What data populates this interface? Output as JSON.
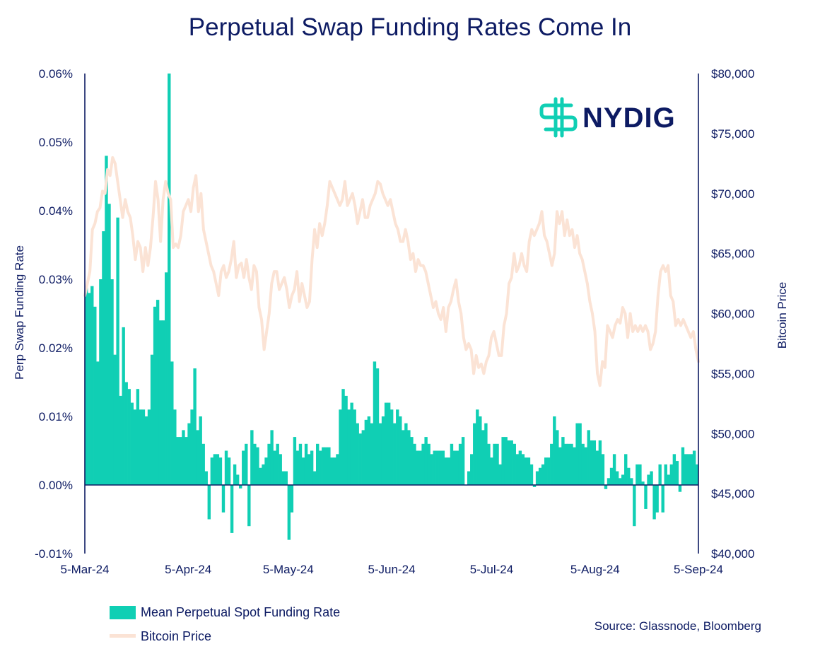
{
  "chart_data": {
    "type": "bar+line",
    "title": "Perpetual Swap Funding Rates Come In",
    "ylabel_left": "Perp Swap Funding Rate",
    "ylabel_right": "Bitcoin Price",
    "ylim_left": [
      -0.01,
      0.06
    ],
    "ylim_right": [
      40000,
      80000
    ],
    "y_ticks_left": [
      "0.06%",
      "0.05%",
      "0.04%",
      "0.03%",
      "0.02%",
      "0.01%",
      "0.00%",
      "-0.01%"
    ],
    "y_tick_values_left": [
      0.06,
      0.05,
      0.04,
      0.03,
      0.02,
      0.01,
      0.0,
      -0.01
    ],
    "y_ticks_right": [
      "$80,000",
      "$75,000",
      "$70,000",
      "$65,000",
      "$60,000",
      "$55,000",
      "$50,000",
      "$45,000",
      "$40,000"
    ],
    "y_tick_values_right": [
      80000,
      75000,
      70000,
      65000,
      60000,
      55000,
      50000,
      45000,
      40000
    ],
    "x_ticks": [
      "5-Mar-24",
      "5-Apr-24",
      "5-May-24",
      "5-Jun-24",
      "5-Jul-24",
      "5-Aug-24",
      "5-Sep-24"
    ],
    "x_tick_days": [
      0,
      31,
      61,
      92,
      122,
      153,
      184
    ],
    "series": [
      {
        "name": "Mean Perpetual Spot Funding Rate",
        "kind": "bar",
        "color": "#10cfb4",
        "values": [
          0.029,
          0.028,
          0.029,
          0.026,
          0.018,
          0.03,
          0.037,
          0.048,
          0.041,
          0.03,
          0.019,
          0.039,
          0.013,
          0.023,
          0.015,
          0.014,
          0.012,
          0.011,
          0.014,
          0.011,
          0.011,
          0.01,
          0.011,
          0.019,
          0.026,
          0.027,
          0.024,
          0.024,
          0.031,
          0.06,
          0.018,
          0.011,
          0.007,
          0.007,
          0.008,
          0.007,
          0.009,
          0.011,
          0.017,
          0.008,
          0.01,
          0.006,
          0.002,
          -0.005,
          0.004,
          0.0045,
          0.0045,
          0.004,
          -0.004,
          0.005,
          0.004,
          -0.007,
          0.003,
          0.0015,
          -0.0005,
          0.005,
          0.006,
          -0.006,
          0.008,
          0.006,
          0.0055,
          0.0025,
          0.003,
          0.004,
          0.006,
          0.008,
          0.005,
          0.006,
          0.0045,
          0.002,
          0.002,
          -0.008,
          -0.004,
          0.007,
          0.005,
          0.006,
          0.004,
          0.006,
          0.0045,
          0.005,
          0.002,
          0.006,
          0.005,
          0.0055,
          0.0055,
          0.0055,
          0.004,
          0.004,
          0.0045,
          0.011,
          0.014,
          0.013,
          0.011,
          0.012,
          0.011,
          0.009,
          0.0075,
          0.008,
          0.0095,
          0.01,
          0.009,
          0.018,
          0.017,
          0.009,
          0.01,
          0.012,
          0.012,
          0.011,
          0.009,
          0.011,
          0.01,
          0.008,
          0.009,
          0.008,
          0.007,
          0.006,
          0.005,
          0.005,
          0.006,
          0.007,
          0.006,
          0.0045,
          0.005,
          0.005,
          0.005,
          0.005,
          0.004,
          0.004,
          0.006,
          0.005,
          0.005,
          0.006,
          0.007,
          0.0,
          0.002,
          0.0045,
          0.009,
          0.011,
          0.01,
          0.008,
          0.009,
          0.006,
          0.004,
          0.006,
          0.006,
          0.003,
          0.007,
          0.007,
          0.0065,
          0.0065,
          0.006,
          0.0045,
          0.005,
          0.0045,
          0.004,
          0.004,
          0.003,
          -0.0003,
          0.002,
          0.0025,
          0.003,
          0.004,
          0.004,
          0.006,
          0.01,
          0.008,
          0.0055,
          0.007,
          0.006,
          0.006,
          0.006,
          0.0055,
          0.009,
          0.009,
          0.006,
          0.0055,
          0.008,
          0.0065,
          0.0065,
          0.005,
          0.0065,
          0.0045,
          -0.0006,
          0.001,
          0.0025,
          0.0045,
          0.002,
          0.001,
          0.0015,
          0.0045,
          0.0025,
          0.001,
          -0.006,
          0.003,
          0.003,
          0.0005,
          -0.0035,
          0.0015,
          0.002,
          -0.005,
          -0.004,
          0.003,
          -0.004,
          0.003,
          0.0015,
          0.003,
          0.0045,
          0.0035,
          -0.001,
          0.0055,
          0.0045,
          0.0045,
          0.0045,
          0.005,
          0.003
        ]
      },
      {
        "name": "Bitcoin Price",
        "kind": "line",
        "color": "#fbe3d5",
        "values": [
          61500,
          62500,
          63500,
          67000,
          67500,
          68500,
          68800,
          70200,
          70000,
          72000,
          71500,
          73000,
          72500,
          71000,
          69500,
          68000,
          69500,
          68500,
          68000,
          66500,
          64500,
          66000,
          65500,
          63500,
          65500,
          64000,
          65500,
          68000,
          71000,
          69500,
          66000,
          69500,
          71000,
          70000,
          69500,
          65500,
          65800,
          65500,
          66500,
          68500,
          69000,
          69500,
          68500,
          70500,
          71500,
          68500,
          70000,
          67000,
          66000,
          65000,
          64000,
          63500,
          62500,
          61500,
          63500,
          64000,
          63000,
          63500,
          64500,
          66000,
          63000,
          64000,
          64200,
          63000,
          64500,
          63000,
          62000,
          64000,
          63500,
          60500,
          59500,
          57000,
          58500,
          60000,
          62500,
          63500,
          63500,
          62000,
          62500,
          63000,
          62000,
          60500,
          61500,
          62000,
          63500,
          61000,
          62500,
          61500,
          60500,
          61000,
          64500,
          67000,
          65500,
          67500,
          66500,
          67500,
          69000,
          71000,
          70500,
          70000,
          69500,
          69000,
          69500,
          71000,
          69000,
          69500,
          70000,
          69000,
          67500,
          68500,
          69500,
          68000,
          68000,
          69000,
          69500,
          70000,
          71000,
          70800,
          70000,
          69500,
          69000,
          69500,
          68500,
          67500,
          67000,
          66000,
          66000,
          67000,
          66000,
          64500,
          65000,
          63500,
          64500,
          64000,
          64000,
          63500,
          62500,
          61500,
          60500,
          61000,
          60000,
          59500,
          60500,
          58500,
          60500,
          61000,
          62000,
          62800,
          61000,
          60000,
          58000,
          57000,
          57500,
          57000,
          55000,
          56500,
          55500,
          55800,
          55000,
          56000,
          56500,
          58000,
          58500,
          57500,
          56500,
          56500,
          59000,
          60000,
          62500,
          63000,
          65000,
          63500,
          64000,
          65000,
          64000,
          63500,
          66000,
          67000,
          66500,
          67000,
          67500,
          68500,
          66500,
          66000,
          65000,
          64000,
          65000,
          68500,
          67500,
          68500,
          66500,
          67800,
          66500,
          67000,
          65500,
          66500,
          65000,
          64500,
          63500,
          62500,
          61000,
          60000,
          58500,
          55000,
          54000,
          56000,
          55500,
          59000,
          58500,
          58000,
          59000,
          59500,
          59200,
          60500,
          60000,
          58000,
          60000,
          58500,
          59000,
          58500,
          59000,
          58500,
          59000,
          58500,
          57000,
          57500,
          58500,
          61500,
          63500,
          64000,
          63500,
          64000,
          61500,
          61000,
          59000,
          59500,
          59000,
          59500,
          59000,
          58500,
          58000,
          58500,
          57000,
          56000
        ]
      }
    ],
    "legend": [
      {
        "label": "Mean Perpetual Spot Funding Rate",
        "color": "#10cfb4"
      },
      {
        "label": "Bitcoin Price",
        "color": "#fbe3d5"
      }
    ],
    "legend_position": "bottom-left",
    "grid": false
  },
  "branding": {
    "logo_text": "NYDIG",
    "logo_color": "#10cfb4"
  },
  "footer": {
    "source": "Source: Glassnode, Bloomberg"
  }
}
